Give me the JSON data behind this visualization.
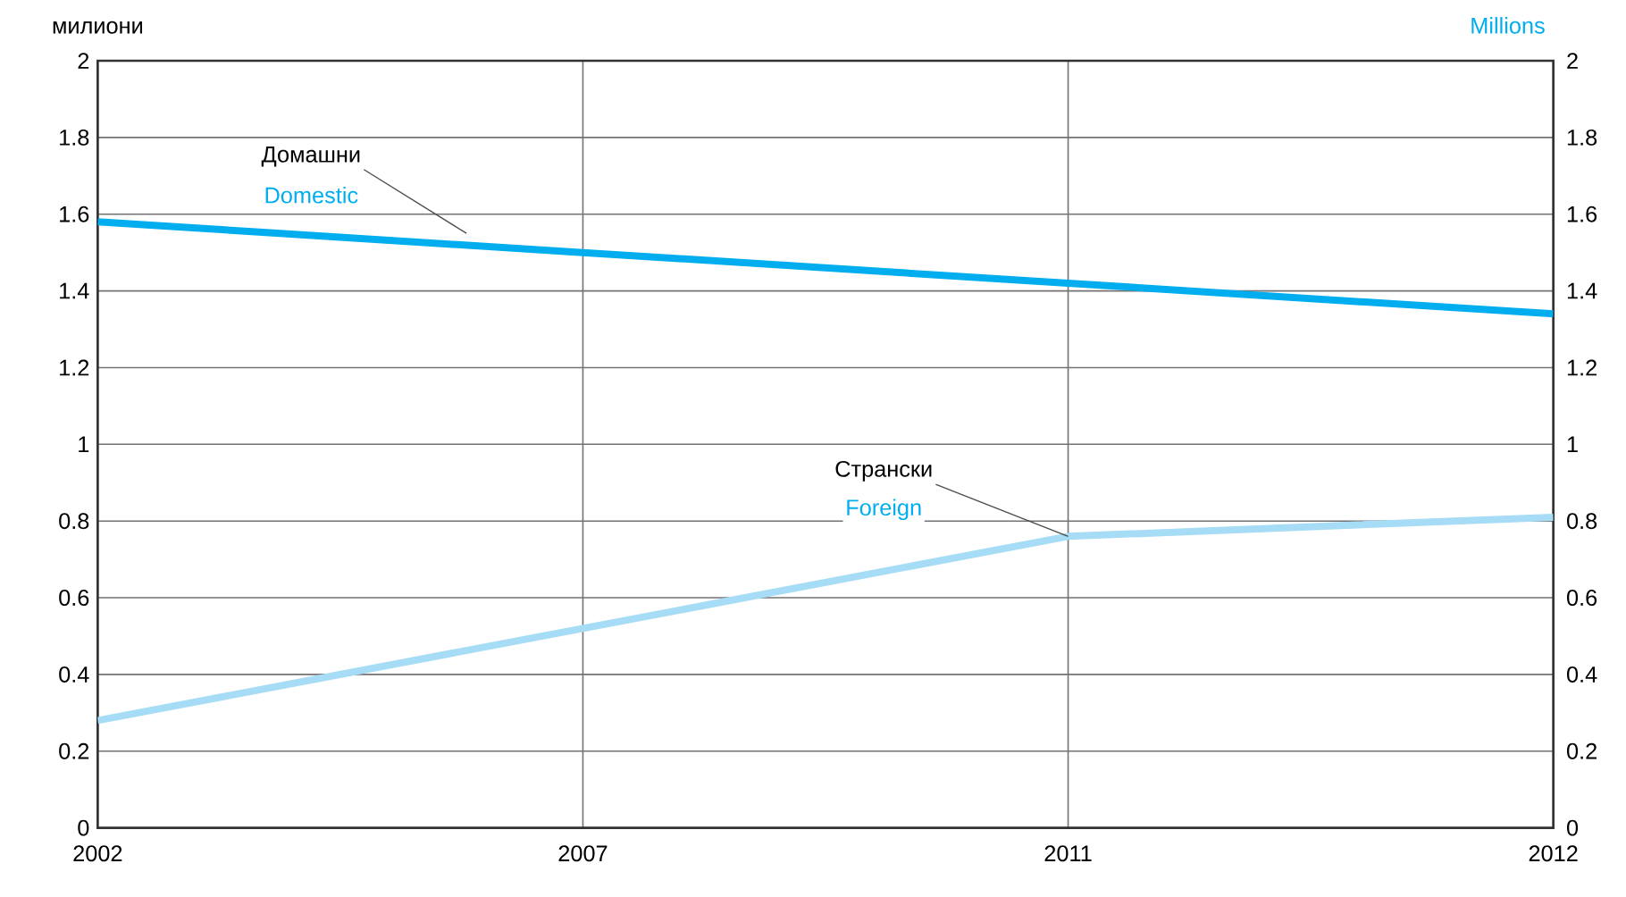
{
  "chart_data": {
    "type": "line",
    "ylabel": "милиони",
    "y2label": "Millions",
    "categories": [
      "2002",
      "2007",
      "2011",
      "2012"
    ],
    "series": [
      {
        "name": "Домашни",
        "color": "#00aeef",
        "values": [
          1.58,
          1.5,
          1.42,
          1.34
        ]
      },
      {
        "name": "Странски",
        "color": "#a6dcf5",
        "values": [
          0.28,
          0.52,
          0.76,
          0.81
        ]
      }
    ],
    "annotations": [
      "Domestic",
      {
        "text": "Foreign",
        "x": "2011",
        "y": 0.76
      }
    ],
    "ylim": [
      0,
      2
    ],
    "yticks": [
      0,
      0.2,
      0.4,
      0.6,
      0.8,
      1,
      1.2,
      1.4,
      1.6,
      1.8,
      2
    ],
    "y2lim": [
      0,
      2
    ],
    "y2ticks": [
      0,
      0.2,
      0.4,
      0.6,
      0.8,
      1,
      1.2,
      1.4,
      1.6,
      1.8,
      2
    ],
    "grid": true,
    "legend": false,
    "line_style": "solid"
  }
}
